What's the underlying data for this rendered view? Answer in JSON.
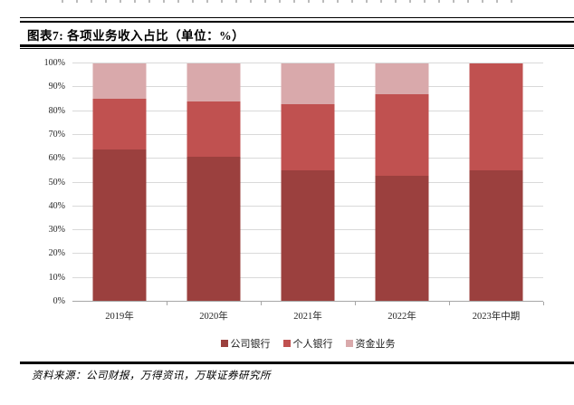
{
  "figure": {
    "title": "图表7: 各项业务收入占比（单位：%）",
    "source": "资料来源：公司财报，万得资讯，万联证券研究所"
  },
  "chart_data": {
    "type": "bar",
    "stacked": true,
    "title": "各项业务收入占比",
    "unit": "%",
    "categories": [
      "2019年",
      "2020年",
      "2021年",
      "2022年",
      "2023年中期"
    ],
    "series": [
      {
        "name": "公司银行",
        "color": "#9b403e",
        "values": [
          64,
          61,
          55,
          53,
          55
        ]
      },
      {
        "name": "个人银行",
        "color": "#c05150",
        "values": [
          21,
          23,
          28,
          34,
          45
        ]
      },
      {
        "name": "资金业务",
        "color": "#d9a9ab",
        "values": [
          15,
          16,
          17,
          13,
          0
        ]
      }
    ],
    "ylim": [
      0,
      100
    ],
    "ytick_labels": [
      "0%",
      "10%",
      "20%",
      "30%",
      "40%",
      "50%",
      "60%",
      "70%",
      "80%",
      "90%",
      "100%"
    ],
    "grid": true,
    "legend_position": "bottom",
    "style_colors": {
      "gridline": "#d9d9d9",
      "axis": "#a6a6a6"
    }
  }
}
